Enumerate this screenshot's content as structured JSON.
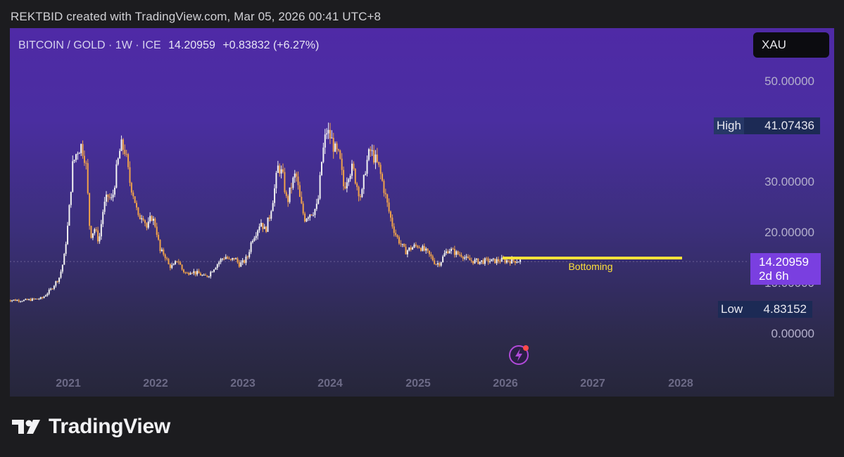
{
  "caption": "REKTBID created with TradingView.com, Mar 05, 2026 00:41 UTC+8",
  "header": {
    "symbol": "BITCOIN / GOLD · 1W · ICE",
    "last": "14.20959",
    "change": "+0.83832 (+6.27%)"
  },
  "currency": "XAU",
  "axis": {
    "yticks": [
      "50.00000",
      "30.00000",
      "20.00000",
      "10.00000",
      "0.00000"
    ],
    "xticks": [
      "2021",
      "2022",
      "2023",
      "2024",
      "2025",
      "2026",
      "2027",
      "2028"
    ]
  },
  "tags": {
    "high_label": "High",
    "high_value": "41.07436",
    "low_label": "Low",
    "low_value": "4.83152",
    "price_value": "14.20959",
    "countdown": "2d 6h"
  },
  "annotation": {
    "text": "Bottoming",
    "level": 15.5,
    "color": "#ffe23a"
  },
  "brand": "TradingView",
  "colors": {
    "up": "#f2f2f2",
    "down": "#f0a24a",
    "accent": "#7a3fe0",
    "tag_bg": "#1c2a55"
  },
  "chart_data": {
    "type": "line",
    "title": "BITCOIN / GOLD · 1W · ICE",
    "xlabel": "",
    "ylabel": "",
    "scale": "log",
    "ylim": [
      0,
      55
    ],
    "y_ticks": [
      50,
      30,
      20,
      10,
      0
    ],
    "x_range": [
      2020.28,
      2028.5
    ],
    "series": [
      {
        "x": [
          2020.3,
          2020.5,
          2020.7,
          2020.8,
          2020.9,
          2020.95,
          2021.0,
          2021.05,
          2021.1,
          2021.15,
          2021.2,
          2021.25,
          2021.3,
          2021.35,
          2021.4,
          2021.45,
          2021.5,
          2021.55,
          2021.6,
          2021.65,
          2021.7,
          2021.75,
          2021.8,
          2021.85,
          2021.9,
          2021.95,
          2022.0,
          2022.05,
          2022.1,
          2022.15,
          2022.2,
          2022.25,
          2022.3,
          2022.35,
          2022.4,
          2022.45,
          2022.5,
          2022.55,
          2022.6,
          2022.65,
          2022.7,
          2022.75,
          2022.8,
          2022.85,
          2022.9,
          2022.95,
          2023.0,
          2023.05,
          2023.1,
          2023.15,
          2023.2,
          2023.25,
          2023.3,
          2023.35,
          2023.4,
          2023.45,
          2023.5,
          2023.55,
          2023.6,
          2023.65,
          2023.7,
          2023.75,
          2023.8,
          2023.85,
          2023.9,
          2023.95,
          2024.0,
          2024.05,
          2024.1,
          2024.15,
          2024.2,
          2024.25,
          2024.3,
          2024.35,
          2024.4,
          2024.45,
          2024.5,
          2024.55,
          2024.6,
          2024.65,
          2024.7,
          2024.75,
          2024.8,
          2024.85,
          2024.9,
          2024.95,
          2025.0,
          2025.05,
          2025.1,
          2025.15,
          2025.2,
          2025.25,
          2025.3,
          2025.35,
          2025.4,
          2025.45,
          2025.5,
          2025.55,
          2025.6,
          2025.65,
          2025.7,
          2025.75,
          2025.8,
          2025.85,
          2025.9,
          2025.95,
          2026.0,
          2026.05,
          2026.1,
          2026.15,
          2026.17
        ],
        "values": [
          6.5,
          6.4,
          6.8,
          8.5,
          11.0,
          14.5,
          22.0,
          33.0,
          36.0,
          37.0,
          34.0,
          19.0,
          20.5,
          18.0,
          24.5,
          27.0,
          26.0,
          32.0,
          37.0,
          36.0,
          30.0,
          27.0,
          22.5,
          23.5,
          20.5,
          23.0,
          21.0,
          16.0,
          15.5,
          13.2,
          13.0,
          14.5,
          12.5,
          11.5,
          12.3,
          11.8,
          11.6,
          11.0,
          11.3,
          12.5,
          13.5,
          14.5,
          15.0,
          14.0,
          14.8,
          13.5,
          13.8,
          15.0,
          18.5,
          20.0,
          22.0,
          20.0,
          23.0,
          27.5,
          33.0,
          31.0,
          25.5,
          29.0,
          31.5,
          26.0,
          22.5,
          23.5,
          24.0,
          25.0,
          34.5,
          40.0,
          38.5,
          36.0,
          34.5,
          28.5,
          31.5,
          32.5,
          29.0,
          26.5,
          33.0,
          36.0,
          34.5,
          32.5,
          29.0,
          25.0,
          21.5,
          19.0,
          17.5,
          16.0,
          16.5,
          17.0,
          17.2,
          16.5,
          15.8,
          14.8,
          13.6,
          13.8,
          15.5,
          16.5,
          16.0,
          15.5,
          15.4,
          14.5,
          14.2,
          14.1,
          14.0,
          14.1,
          14.2,
          14.1,
          14.2,
          14.3,
          14.2,
          14.2,
          14.2,
          14.2,
          14.2
        ]
      }
    ]
  }
}
